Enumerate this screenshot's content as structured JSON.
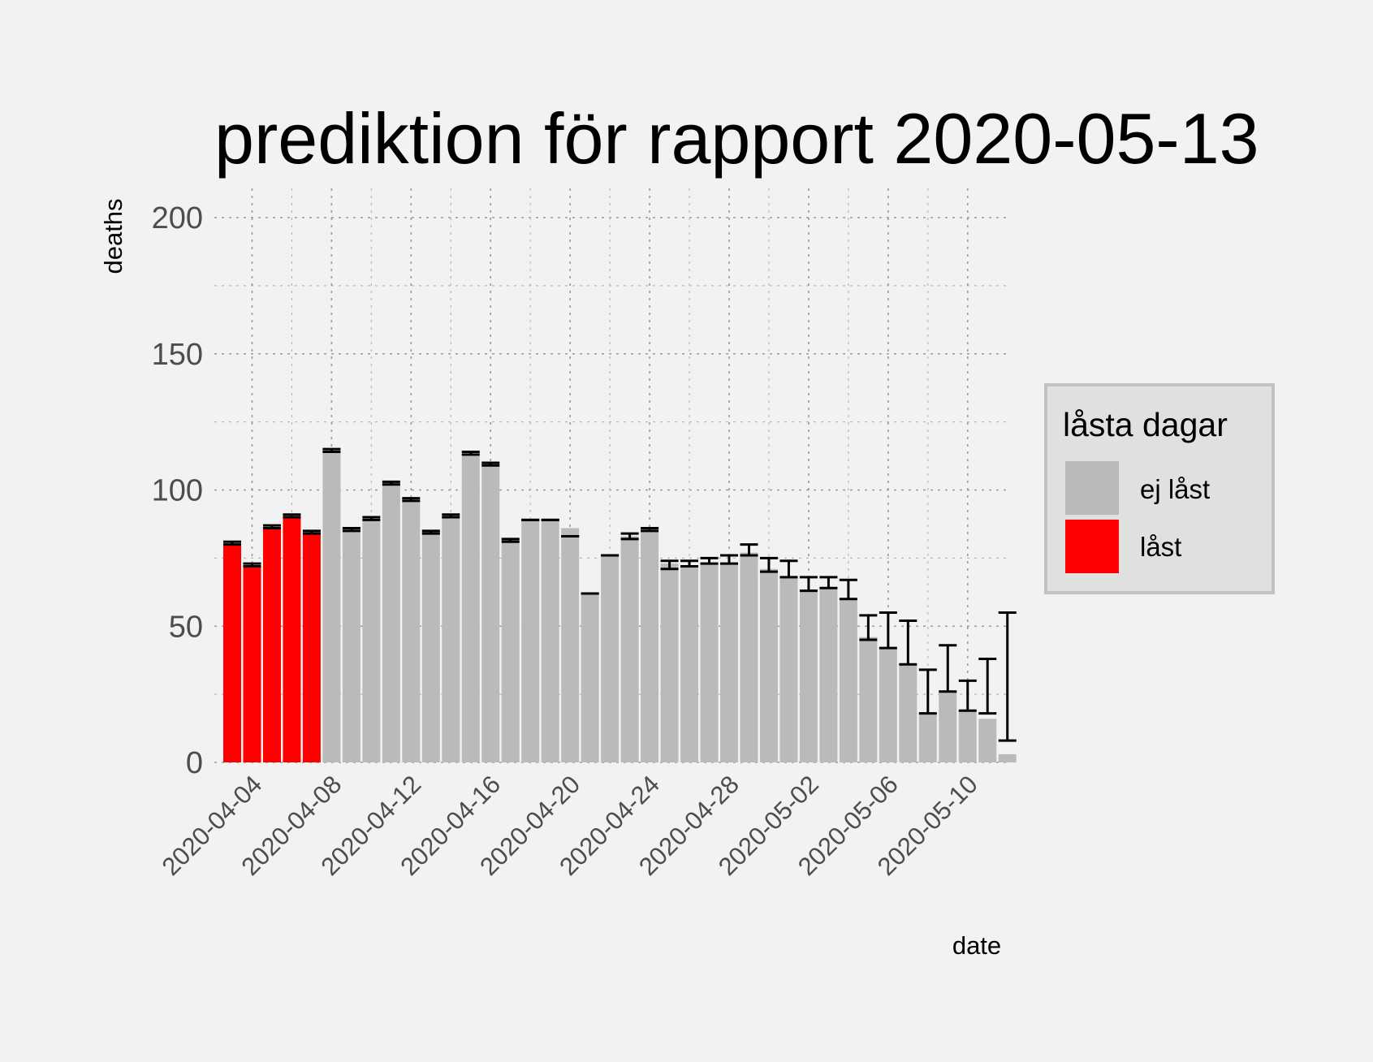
{
  "chart_data": {
    "type": "bar",
    "title": "prediktion för rapport 2020-05-13",
    "xlabel": "date",
    "ylabel": "deaths",
    "ylim": [
      0,
      200
    ],
    "yticks": [
      0,
      50,
      100,
      150,
      200
    ],
    "xticks": [
      "2020-04-04",
      "2020-04-08",
      "2020-04-12",
      "2020-04-16",
      "2020-04-20",
      "2020-04-24",
      "2020-04-28",
      "2020-05-02",
      "2020-05-06",
      "2020-05-10"
    ],
    "grid": true,
    "legend_position": "right",
    "legend": {
      "title": "låsta dagar",
      "items": [
        {
          "label": "ej låst",
          "color": "#bababa"
        },
        {
          "label": "låst",
          "color": "#ff0000"
        }
      ]
    },
    "data": [
      {
        "date": "2020-04-03",
        "value": 80,
        "lo": 80,
        "hi": 81,
        "locked": true
      },
      {
        "date": "2020-04-04",
        "value": 72,
        "lo": 72,
        "hi": 73,
        "locked": true
      },
      {
        "date": "2020-04-05",
        "value": 86,
        "lo": 86,
        "hi": 87,
        "locked": true
      },
      {
        "date": "2020-04-06",
        "value": 90,
        "lo": 90,
        "hi": 91,
        "locked": true
      },
      {
        "date": "2020-04-07",
        "value": 84,
        "lo": 84,
        "hi": 85,
        "locked": true
      },
      {
        "date": "2020-04-08",
        "value": 114,
        "lo": 114,
        "hi": 115,
        "locked": false
      },
      {
        "date": "2020-04-09",
        "value": 86,
        "lo": 85,
        "hi": 86,
        "locked": false
      },
      {
        "date": "2020-04-10",
        "value": 89,
        "lo": 89,
        "hi": 90,
        "locked": false
      },
      {
        "date": "2020-04-11",
        "value": 103,
        "lo": 102,
        "hi": 103,
        "locked": false
      },
      {
        "date": "2020-04-12",
        "value": 96,
        "lo": 96,
        "hi": 97,
        "locked": false
      },
      {
        "date": "2020-04-13",
        "value": 85,
        "lo": 84,
        "hi": 85,
        "locked": false
      },
      {
        "date": "2020-04-14",
        "value": 90,
        "lo": 90,
        "hi": 91,
        "locked": false
      },
      {
        "date": "2020-04-15",
        "value": 113,
        "lo": 113,
        "hi": 114,
        "locked": false
      },
      {
        "date": "2020-04-16",
        "value": 110,
        "lo": 109,
        "hi": 110,
        "locked": false
      },
      {
        "date": "2020-04-17",
        "value": 82,
        "lo": 81,
        "hi": 82,
        "locked": false
      },
      {
        "date": "2020-04-18",
        "value": 89,
        "lo": 89,
        "hi": 89,
        "locked": false
      },
      {
        "date": "2020-04-19",
        "value": 89,
        "lo": 89,
        "hi": 89,
        "locked": false
      },
      {
        "date": "2020-04-20",
        "value": 86,
        "lo": 83,
        "hi": 83,
        "locked": false
      },
      {
        "date": "2020-04-21",
        "value": 62,
        "lo": 62,
        "hi": 62,
        "locked": false
      },
      {
        "date": "2020-04-22",
        "value": 76,
        "lo": 76,
        "hi": 76,
        "locked": false
      },
      {
        "date": "2020-04-23",
        "value": 83,
        "lo": 82,
        "hi": 84,
        "locked": false
      },
      {
        "date": "2020-04-24",
        "value": 86,
        "lo": 85,
        "hi": 86,
        "locked": false
      },
      {
        "date": "2020-04-25",
        "value": 73,
        "lo": 71,
        "hi": 74,
        "locked": false
      },
      {
        "date": "2020-04-26",
        "value": 72,
        "lo": 72,
        "hi": 74,
        "locked": false
      },
      {
        "date": "2020-04-27",
        "value": 73,
        "lo": 73,
        "hi": 75,
        "locked": false
      },
      {
        "date": "2020-04-28",
        "value": 73,
        "lo": 73,
        "hi": 76,
        "locked": false
      },
      {
        "date": "2020-04-29",
        "value": 77,
        "lo": 76,
        "hi": 80,
        "locked": false
      },
      {
        "date": "2020-04-30",
        "value": 71,
        "lo": 70,
        "hi": 75,
        "locked": false
      },
      {
        "date": "2020-05-01",
        "value": 68,
        "lo": 68,
        "hi": 74,
        "locked": false
      },
      {
        "date": "2020-05-02",
        "value": 63,
        "lo": 63,
        "hi": 68,
        "locked": false
      },
      {
        "date": "2020-05-03",
        "value": 64,
        "lo": 64,
        "hi": 68,
        "locked": false
      },
      {
        "date": "2020-05-04",
        "value": 60,
        "lo": 60,
        "hi": 67,
        "locked": false
      },
      {
        "date": "2020-05-05",
        "value": 46,
        "lo": 45,
        "hi": 54,
        "locked": false
      },
      {
        "date": "2020-05-06",
        "value": 42,
        "lo": 42,
        "hi": 55,
        "locked": false
      },
      {
        "date": "2020-05-07",
        "value": 36,
        "lo": 36,
        "hi": 52,
        "locked": false
      },
      {
        "date": "2020-05-08",
        "value": 18,
        "lo": 18,
        "hi": 34,
        "locked": false
      },
      {
        "date": "2020-05-09",
        "value": 26,
        "lo": 26,
        "hi": 43,
        "locked": false
      },
      {
        "date": "2020-05-10",
        "value": 19,
        "lo": 19,
        "hi": 30,
        "locked": false
      },
      {
        "date": "2020-05-11",
        "value": 16,
        "lo": 18,
        "hi": 38,
        "locked": false
      },
      {
        "date": "2020-05-12",
        "value": 3,
        "lo": 8,
        "hi": 55,
        "locked": false
      }
    ]
  }
}
